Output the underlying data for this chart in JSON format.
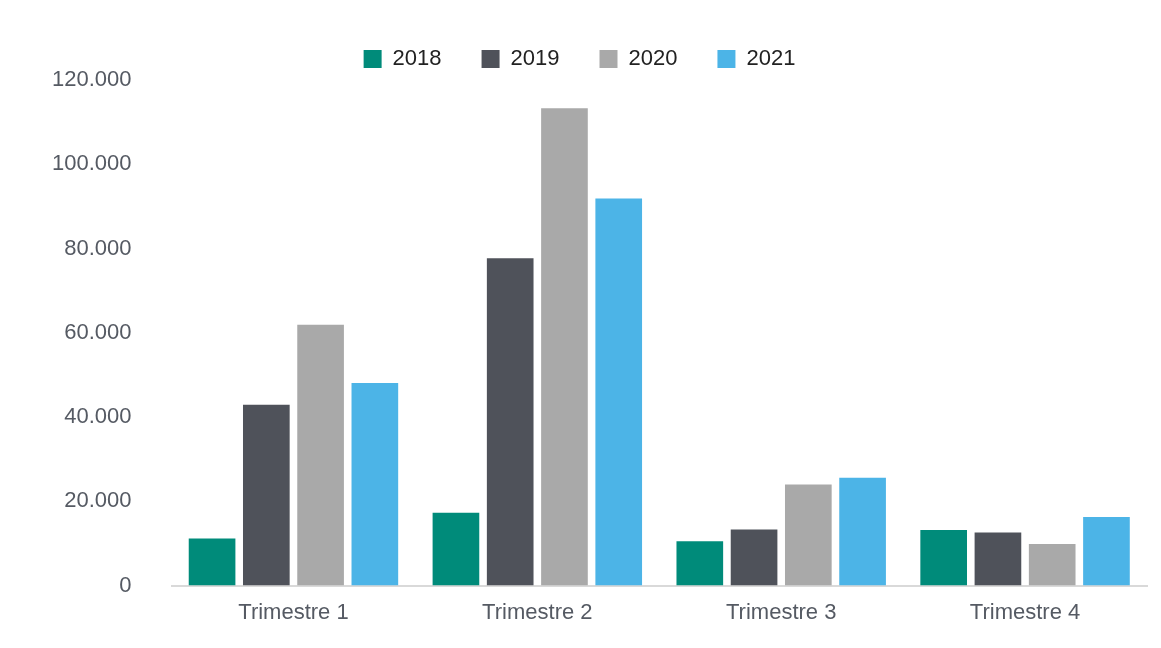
{
  "chart_data": {
    "type": "bar",
    "categories": [
      "Trimestre 1",
      "Trimestre 2",
      "Trimestre 3",
      "Trimestre 4"
    ],
    "series": [
      {
        "name": "2018",
        "color": "#008b7a",
        "values": [
          11200,
          17300,
          10500,
          13200
        ]
      },
      {
        "name": "2019",
        "color": "#4f525a",
        "values": [
          42900,
          77700,
          13300,
          12600
        ]
      },
      {
        "name": "2020",
        "color": "#a9a9a9",
        "values": [
          61900,
          113300,
          24000,
          9900
        ]
      },
      {
        "name": "2021",
        "color": "#4cb4e7",
        "values": [
          48100,
          91900,
          25600,
          16300
        ]
      }
    ],
    "ylim": [
      0,
      120000
    ],
    "yticks": [
      {
        "value": 0,
        "label": "0"
      },
      {
        "value": 20000,
        "label": "20.000"
      },
      {
        "value": 40000,
        "label": "40.000"
      },
      {
        "value": 60000,
        "label": "60.000"
      },
      {
        "value": 80000,
        "label": "80.000"
      },
      {
        "value": 100000,
        "label": "100.000"
      },
      {
        "value": 120000,
        "label": "120.000"
      }
    ],
    "grid": false,
    "legend": "top"
  }
}
